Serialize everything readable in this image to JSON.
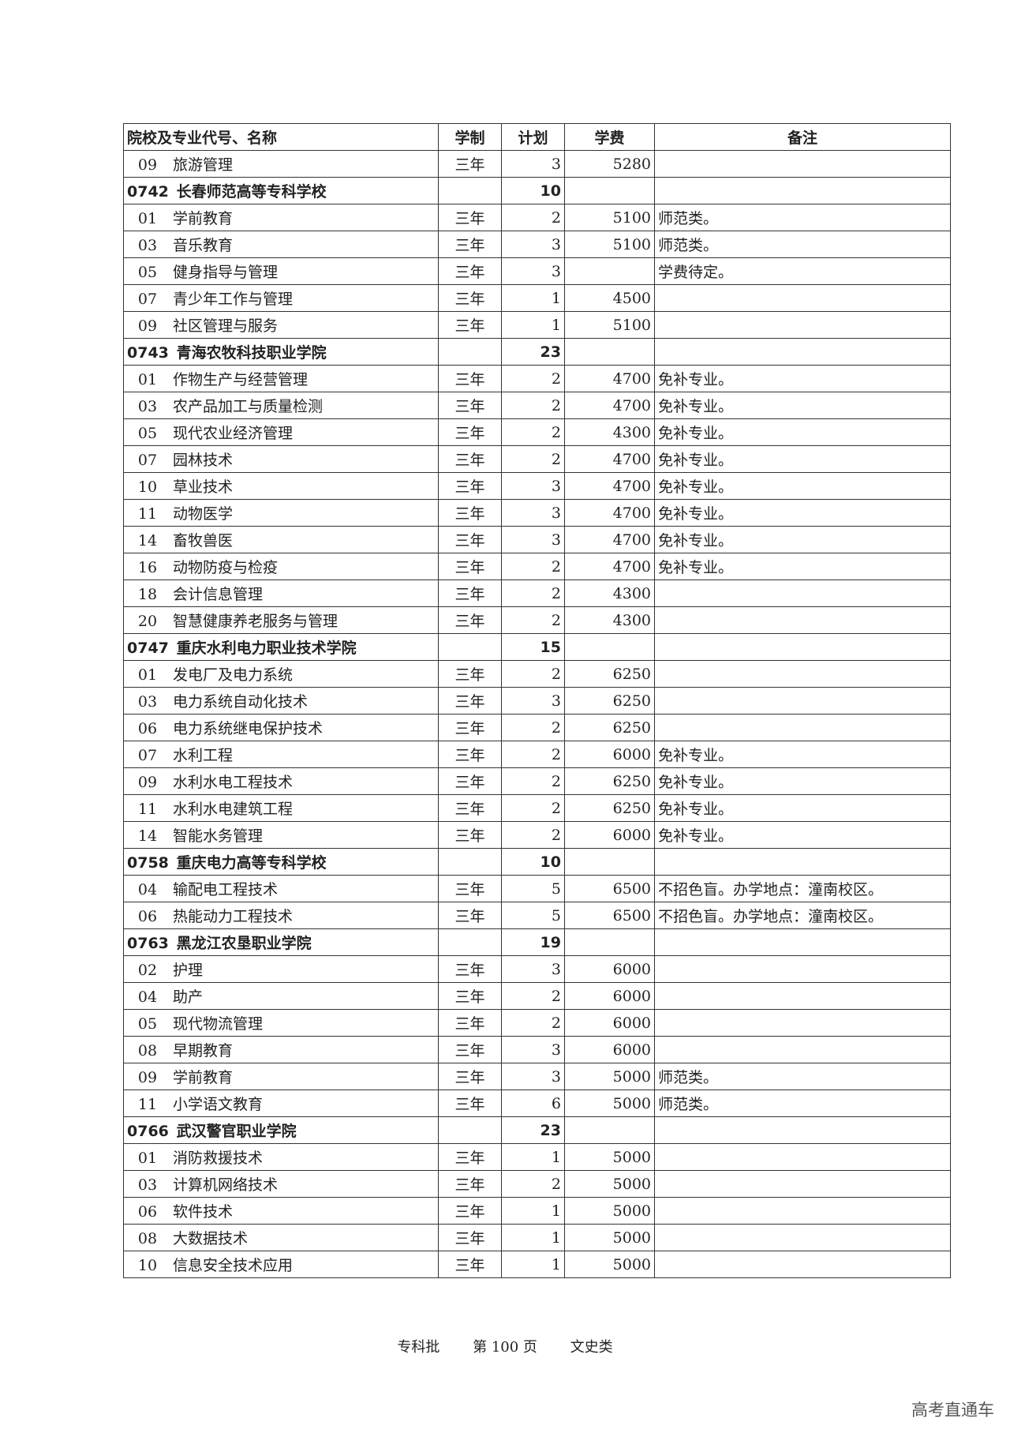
{
  "table": {
    "headers": [
      "院校及专业代号、名称",
      "学制",
      "计划",
      "学费",
      "备注"
    ],
    "rows": [
      {
        "type": "major",
        "code": "09",
        "name": "旅游管理",
        "duration": "三年",
        "plan": "3",
        "fee": "5280",
        "note": ""
      },
      {
        "type": "school",
        "code": "0742",
        "name": "长春师范高等专科学校",
        "duration": "",
        "plan": "10",
        "fee": "",
        "note": ""
      },
      {
        "type": "major",
        "code": "01",
        "name": "学前教育",
        "duration": "三年",
        "plan": "2",
        "fee": "5100",
        "note": "师范类。"
      },
      {
        "type": "major",
        "code": "03",
        "name": "音乐教育",
        "duration": "三年",
        "plan": "3",
        "fee": "5100",
        "note": "师范类。"
      },
      {
        "type": "major",
        "code": "05",
        "name": "健身指导与管理",
        "duration": "三年",
        "plan": "3",
        "fee": "",
        "note": "学费待定。"
      },
      {
        "type": "major",
        "code": "07",
        "name": "青少年工作与管理",
        "duration": "三年",
        "plan": "1",
        "fee": "4500",
        "note": ""
      },
      {
        "type": "major",
        "code": "09",
        "name": "社区管理与服务",
        "duration": "三年",
        "plan": "1",
        "fee": "5100",
        "note": ""
      },
      {
        "type": "school",
        "code": "0743",
        "name": "青海农牧科技职业学院",
        "duration": "",
        "plan": "23",
        "fee": "",
        "note": ""
      },
      {
        "type": "major",
        "code": "01",
        "name": "作物生产与经营管理",
        "duration": "三年",
        "plan": "2",
        "fee": "4700",
        "note": "免补专业。"
      },
      {
        "type": "major",
        "code": "03",
        "name": "农产品加工与质量检测",
        "duration": "三年",
        "plan": "2",
        "fee": "4700",
        "note": "免补专业。"
      },
      {
        "type": "major",
        "code": "05",
        "name": "现代农业经济管理",
        "duration": "三年",
        "plan": "2",
        "fee": "4300",
        "note": "免补专业。"
      },
      {
        "type": "major",
        "code": "07",
        "name": "园林技术",
        "duration": "三年",
        "plan": "2",
        "fee": "4700",
        "note": "免补专业。"
      },
      {
        "type": "major",
        "code": "10",
        "name": "草业技术",
        "duration": "三年",
        "plan": "3",
        "fee": "4700",
        "note": "免补专业。"
      },
      {
        "type": "major",
        "code": "11",
        "name": "动物医学",
        "duration": "三年",
        "plan": "3",
        "fee": "4700",
        "note": "免补专业。"
      },
      {
        "type": "major",
        "code": "14",
        "name": "畜牧兽医",
        "duration": "三年",
        "plan": "3",
        "fee": "4700",
        "note": "免补专业。"
      },
      {
        "type": "major",
        "code": "16",
        "name": "动物防疫与检疫",
        "duration": "三年",
        "plan": "2",
        "fee": "4700",
        "note": "免补专业。"
      },
      {
        "type": "major",
        "code": "18",
        "name": "会计信息管理",
        "duration": "三年",
        "plan": "2",
        "fee": "4300",
        "note": ""
      },
      {
        "type": "major",
        "code": "20",
        "name": "智慧健康养老服务与管理",
        "duration": "三年",
        "plan": "2",
        "fee": "4300",
        "note": ""
      },
      {
        "type": "school",
        "code": "0747",
        "name": "重庆水利电力职业技术学院",
        "duration": "",
        "plan": "15",
        "fee": "",
        "note": ""
      },
      {
        "type": "major",
        "code": "01",
        "name": "发电厂及电力系统",
        "duration": "三年",
        "plan": "2",
        "fee": "6250",
        "note": ""
      },
      {
        "type": "major",
        "code": "03",
        "name": "电力系统自动化技术",
        "duration": "三年",
        "plan": "3",
        "fee": "6250",
        "note": ""
      },
      {
        "type": "major",
        "code": "06",
        "name": "电力系统继电保护技术",
        "duration": "三年",
        "plan": "2",
        "fee": "6250",
        "note": ""
      },
      {
        "type": "major",
        "code": "07",
        "name": "水利工程",
        "duration": "三年",
        "plan": "2",
        "fee": "6000",
        "note": "免补专业。"
      },
      {
        "type": "major",
        "code": "09",
        "name": "水利水电工程技术",
        "duration": "三年",
        "plan": "2",
        "fee": "6250",
        "note": "免补专业。"
      },
      {
        "type": "major",
        "code": "11",
        "name": "水利水电建筑工程",
        "duration": "三年",
        "plan": "2",
        "fee": "6250",
        "note": "免补专业。"
      },
      {
        "type": "major",
        "code": "14",
        "name": "智能水务管理",
        "duration": "三年",
        "plan": "2",
        "fee": "6000",
        "note": "免补专业。"
      },
      {
        "type": "school",
        "code": "0758",
        "name": "重庆电力高等专科学校",
        "duration": "",
        "plan": "10",
        "fee": "",
        "note": ""
      },
      {
        "type": "major",
        "code": "04",
        "name": "输配电工程技术",
        "duration": "三年",
        "plan": "5",
        "fee": "6500",
        "note": "不招色盲。办学地点：潼南校区。"
      },
      {
        "type": "major",
        "code": "06",
        "name": "热能动力工程技术",
        "duration": "三年",
        "plan": "5",
        "fee": "6500",
        "note": "不招色盲。办学地点：潼南校区。"
      },
      {
        "type": "school",
        "code": "0763",
        "name": "黑龙江农垦职业学院",
        "duration": "",
        "plan": "19",
        "fee": "",
        "note": ""
      },
      {
        "type": "major",
        "code": "02",
        "name": "护理",
        "duration": "三年",
        "plan": "3",
        "fee": "6000",
        "note": ""
      },
      {
        "type": "major",
        "code": "04",
        "name": "助产",
        "duration": "三年",
        "plan": "2",
        "fee": "6000",
        "note": ""
      },
      {
        "type": "major",
        "code": "05",
        "name": "现代物流管理",
        "duration": "三年",
        "plan": "2",
        "fee": "6000",
        "note": ""
      },
      {
        "type": "major",
        "code": "08",
        "name": "早期教育",
        "duration": "三年",
        "plan": "3",
        "fee": "6000",
        "note": ""
      },
      {
        "type": "major",
        "code": "09",
        "name": "学前教育",
        "duration": "三年",
        "plan": "3",
        "fee": "5000",
        "note": "师范类。"
      },
      {
        "type": "major",
        "code": "11",
        "name": "小学语文教育",
        "duration": "三年",
        "plan": "6",
        "fee": "5000",
        "note": "师范类。"
      },
      {
        "type": "school",
        "code": "0766",
        "name": "武汉警官职业学院",
        "duration": "",
        "plan": "23",
        "fee": "",
        "note": ""
      },
      {
        "type": "major",
        "code": "01",
        "name": "消防救援技术",
        "duration": "三年",
        "plan": "1",
        "fee": "5000",
        "note": ""
      },
      {
        "type": "major",
        "code": "03",
        "name": "计算机网络技术",
        "duration": "三年",
        "plan": "2",
        "fee": "5000",
        "note": ""
      },
      {
        "type": "major",
        "code": "06",
        "name": "软件技术",
        "duration": "三年",
        "plan": "1",
        "fee": "5000",
        "note": ""
      },
      {
        "type": "major",
        "code": "08",
        "name": "大数据技术",
        "duration": "三年",
        "plan": "1",
        "fee": "5000",
        "note": ""
      },
      {
        "type": "major",
        "code": "10",
        "name": "信息安全技术应用",
        "duration": "三年",
        "plan": "1",
        "fee": "5000",
        "note": ""
      }
    ]
  },
  "footer": {
    "batch": "专科批",
    "page": "第 100 页",
    "category": "文史类"
  },
  "watermark": "高考直通车"
}
